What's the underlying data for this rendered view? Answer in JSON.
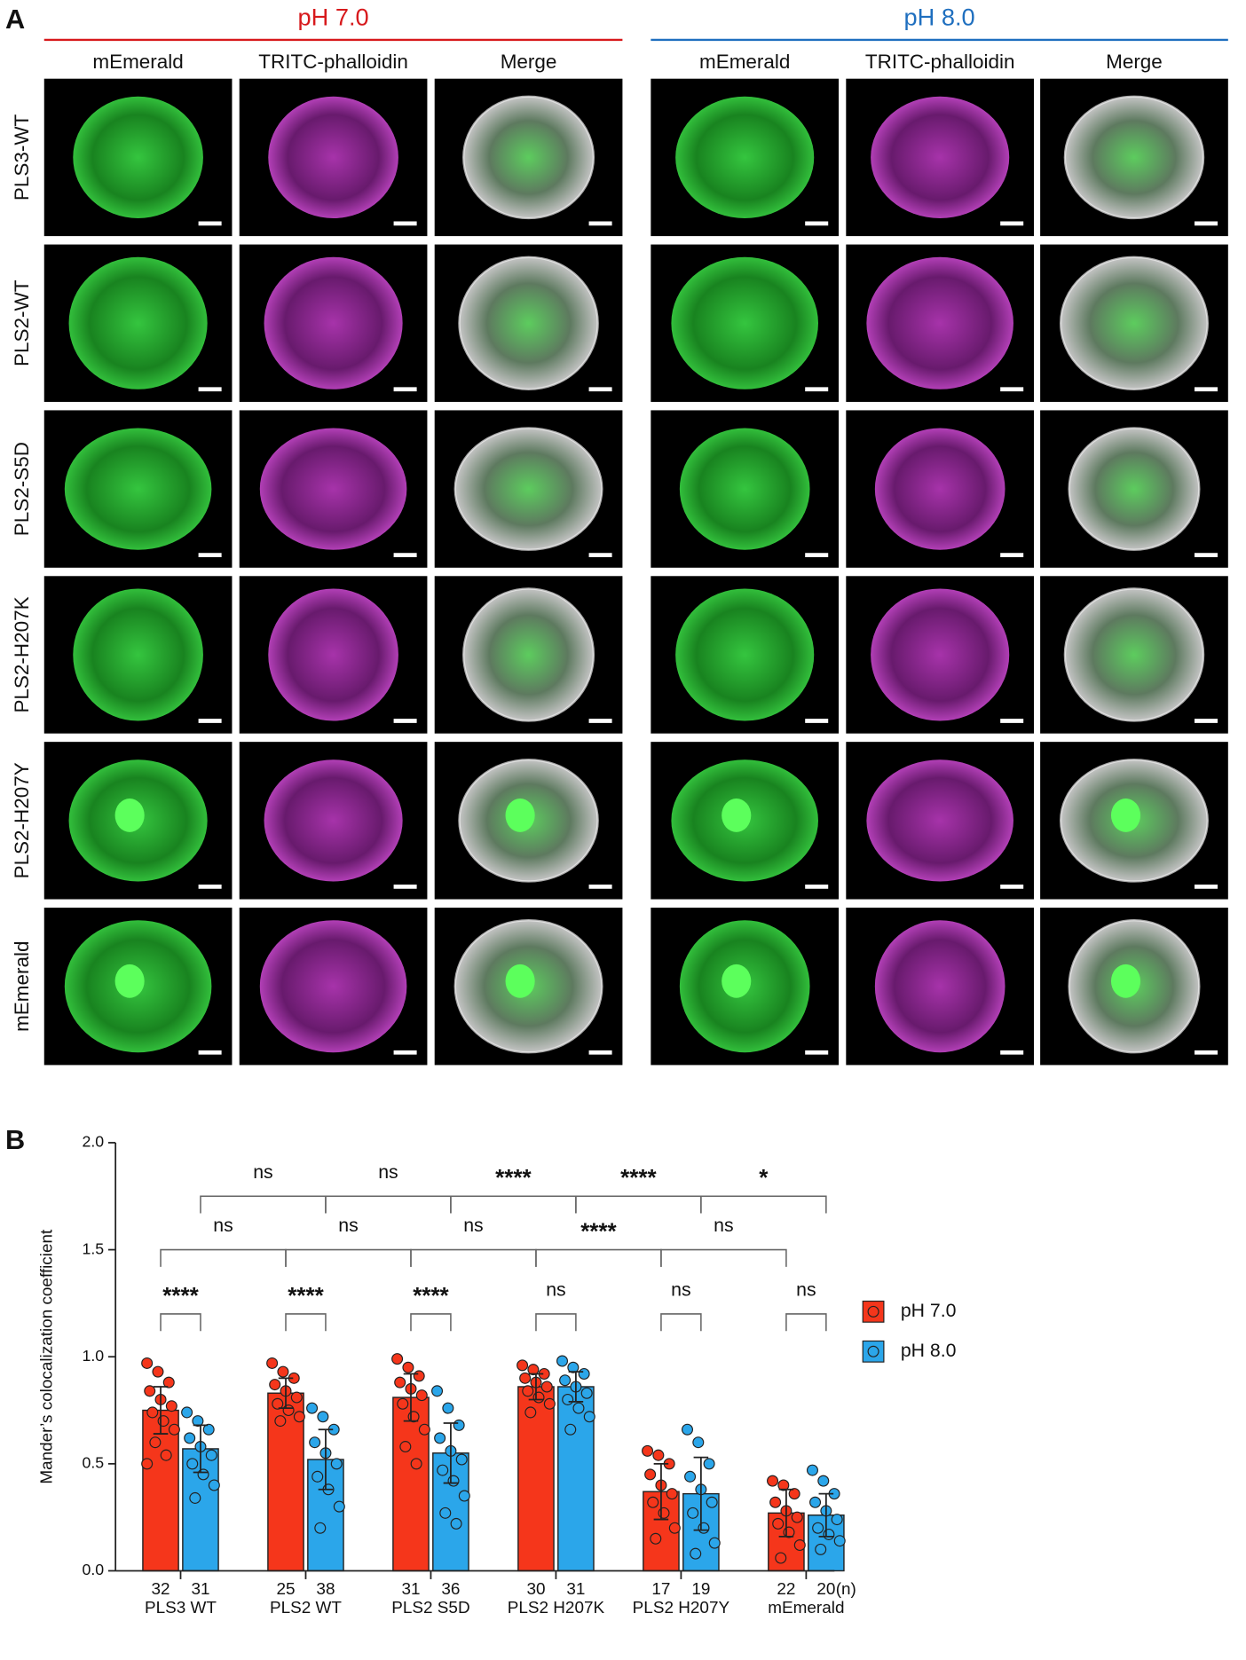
{
  "panel_a": {
    "label": "A",
    "groups": [
      {
        "title": "pH 7.0",
        "color": "#d7191c",
        "columns": [
          "mEmerald",
          "TRITC-phalloidin",
          "Merge"
        ]
      },
      {
        "title": "pH 8.0",
        "color": "#1f6fbf",
        "columns": [
          "mEmerald",
          "TRITC-phalloidin",
          "Merge"
        ]
      }
    ],
    "rows": [
      "PLS3-WT",
      "PLS2-WT",
      "PLS2-S5D",
      "PLS2-H207K",
      "PLS2-H207Y",
      "mEmerald"
    ]
  },
  "panel_b_label": "B",
  "chart_data": {
    "type": "bar",
    "ylabel": "Mander’s colocalization coefficient",
    "categories": [
      "PLS3 WT",
      "PLS2 WT",
      "PLS2 S5D",
      "PLS2 H207K",
      "PLS2 H207Y",
      "mEmerald"
    ],
    "n_label": "(n)",
    "ylim": [
      0,
      2
    ],
    "yticks": [
      {
        "value": 0,
        "label": "0.0"
      },
      {
        "value": 0.5,
        "label": "0.5"
      },
      {
        "value": 1,
        "label": "1.0"
      },
      {
        "value": 1.5,
        "label": "1.5"
      },
      {
        "value": 2,
        "label": "2.0"
      }
    ],
    "legend": "right",
    "series": [
      {
        "name": "pH 7.0",
        "color": "#f5361b",
        "values": [
          0.75,
          0.83,
          0.81,
          0.86,
          0.37,
          0.27
        ],
        "errors": [
          0.11,
          0.07,
          0.11,
          0.06,
          0.13,
          0.11
        ],
        "n": [
          32,
          25,
          31,
          30,
          17,
          22
        ],
        "points": [
          [
            0.97,
            0.93,
            0.88,
            0.84,
            0.8,
            0.77,
            0.74,
            0.7,
            0.66,
            0.6,
            0.54,
            0.5
          ],
          [
            0.97,
            0.93,
            0.9,
            0.87,
            0.84,
            0.81,
            0.78,
            0.75,
            0.72,
            0.7
          ],
          [
            0.99,
            0.95,
            0.91,
            0.88,
            0.85,
            0.82,
            0.78,
            0.72,
            0.66,
            0.58,
            0.5
          ],
          [
            0.96,
            0.94,
            0.92,
            0.9,
            0.88,
            0.86,
            0.84,
            0.81,
            0.78,
            0.74
          ],
          [
            0.56,
            0.54,
            0.5,
            0.45,
            0.4,
            0.36,
            0.32,
            0.27,
            0.2,
            0.15
          ],
          [
            0.42,
            0.4,
            0.36,
            0.32,
            0.28,
            0.25,
            0.22,
            0.18,
            0.12,
            0.06
          ]
        ]
      },
      {
        "name": "pH 8.0",
        "color": "#2ba6ea",
        "values": [
          0.57,
          0.52,
          0.55,
          0.86,
          0.36,
          0.26
        ],
        "errors": [
          0.11,
          0.14,
          0.14,
          0.07,
          0.17,
          0.1
        ],
        "n": [
          31,
          38,
          36,
          31,
          19,
          20
        ],
        "points": [
          [
            0.74,
            0.7,
            0.66,
            0.62,
            0.58,
            0.54,
            0.5,
            0.45,
            0.4,
            0.34
          ],
          [
            0.76,
            0.72,
            0.66,
            0.6,
            0.55,
            0.5,
            0.44,
            0.38,
            0.3,
            0.2
          ],
          [
            0.84,
            0.76,
            0.68,
            0.62,
            0.56,
            0.52,
            0.47,
            0.42,
            0.35,
            0.27,
            0.22
          ],
          [
            0.98,
            0.95,
            0.92,
            0.89,
            0.86,
            0.83,
            0.8,
            0.76,
            0.72,
            0.66
          ],
          [
            0.66,
            0.6,
            0.5,
            0.44,
            0.38,
            0.32,
            0.27,
            0.2,
            0.13,
            0.08
          ],
          [
            0.47,
            0.42,
            0.36,
            0.32,
            0.28,
            0.24,
            0.2,
            0.17,
            0.14,
            0.1
          ]
        ]
      }
    ],
    "comparisons": [
      {
        "between": [
          [
            0,
            0
          ],
          [
            0,
            1
          ]
        ],
        "label": "****"
      },
      {
        "between": [
          [
            1,
            0
          ],
          [
            1,
            1
          ]
        ],
        "label": "****"
      },
      {
        "between": [
          [
            2,
            0
          ],
          [
            2,
            1
          ]
        ],
        "label": "****"
      },
      {
        "between": [
          [
            3,
            0
          ],
          [
            3,
            1
          ]
        ],
        "label": "ns"
      },
      {
        "between": [
          [
            4,
            0
          ],
          [
            4,
            1
          ]
        ],
        "label": "ns"
      },
      {
        "between": [
          [
            5,
            0
          ],
          [
            5,
            1
          ]
        ],
        "label": "ns"
      },
      {
        "between": [
          [
            0,
            0
          ],
          [
            1,
            0
          ]
        ],
        "label": "ns"
      },
      {
        "between": [
          [
            1,
            0
          ],
          [
            2,
            0
          ]
        ],
        "label": "ns"
      },
      {
        "between": [
          [
            2,
            0
          ],
          [
            3,
            0
          ]
        ],
        "label": "ns"
      },
      {
        "between": [
          [
            3,
            0
          ],
          [
            4,
            0
          ]
        ],
        "label": "****"
      },
      {
        "between": [
          [
            4,
            0
          ],
          [
            5,
            0
          ]
        ],
        "label": "ns"
      },
      {
        "between": [
          [
            0,
            1
          ],
          [
            1,
            1
          ]
        ],
        "label": "ns"
      },
      {
        "between": [
          [
            1,
            1
          ],
          [
            2,
            1
          ]
        ],
        "label": "ns"
      },
      {
        "between": [
          [
            2,
            1
          ],
          [
            3,
            1
          ]
        ],
        "label": "****"
      },
      {
        "between": [
          [
            3,
            1
          ],
          [
            4,
            1
          ]
        ],
        "label": "****"
      },
      {
        "between": [
          [
            4,
            1
          ],
          [
            5,
            1
          ]
        ],
        "label": "*"
      }
    ]
  }
}
